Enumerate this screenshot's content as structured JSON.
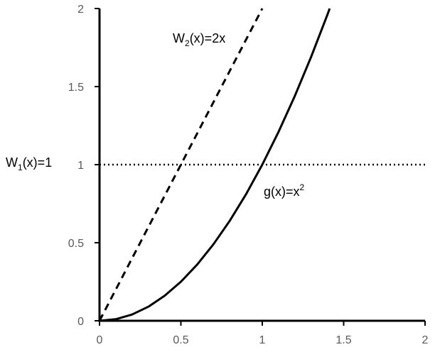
{
  "chart_data": {
    "type": "line",
    "title": "",
    "xlabel": "",
    "ylabel": "",
    "xlim": [
      0,
      2
    ],
    "ylim": [
      0,
      2
    ],
    "x_ticks": [
      "0",
      "0.5",
      "1",
      "1.5",
      "2"
    ],
    "y_ticks": [
      "0",
      "0.5",
      "1",
      "1.5",
      "2"
    ],
    "grid": false,
    "series": [
      {
        "style": "solid",
        "color": "#000000",
        "x": [
          0,
          0.1,
          0.2,
          0.3,
          0.4,
          0.5,
          0.6,
          0.7,
          0.8,
          0.9,
          1.0,
          1.1,
          1.2,
          1.3,
          1.4,
          1.414
        ],
        "y": [
          0,
          0.01,
          0.04,
          0.09,
          0.16,
          0.25,
          0.36,
          0.49,
          0.64,
          0.81,
          1.0,
          1.21,
          1.44,
          1.69,
          1.96,
          2.0
        ]
      },
      {
        "style": "dashed",
        "color": "#000000",
        "x": [
          0,
          1
        ],
        "y": [
          0,
          2
        ]
      },
      {
        "style": "dotted",
        "color": "#000000",
        "x": [
          0,
          2
        ],
        "y": [
          1,
          1
        ]
      }
    ],
    "annotations": {
      "w2": {
        "base": "W",
        "sub": "2",
        "rest": "(x)=2x"
      },
      "w1": {
        "base": "W",
        "sub": "1",
        "rest": "(x)=1"
      },
      "g": {
        "base": "g(x)=x",
        "sup": "2"
      }
    }
  }
}
